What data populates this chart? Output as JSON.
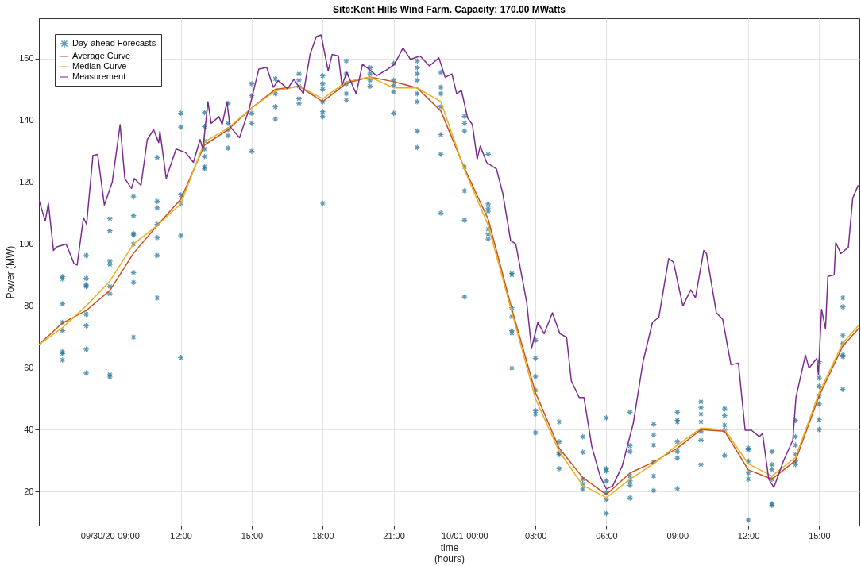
{
  "chart_data": {
    "type": "line",
    "title": "Site:Kent Hills Wind Farm. Capacity: 170.00 MWatts",
    "xlabel": "time\n(hours)",
    "ylabel": "Power (MW)",
    "xlim": [
      "--09-30T06:00",
      "--10-01T16:42"
    ],
    "ylim": [
      9,
      173
    ],
    "xticks": [
      {
        "value": "--09-30T09:00",
        "label": "09/30/20-09:00"
      },
      {
        "value": "--09-30T12:00",
        "label": "12:00"
      },
      {
        "value": "--09-30T15:00",
        "label": "15:00"
      },
      {
        "value": "--09-30T18:00",
        "label": "18:00"
      },
      {
        "value": "--09-30T21:00",
        "label": "21:00"
      },
      {
        "value": "--10-01T00:00",
        "label": "10/01-00:00"
      },
      {
        "value": "--10-01T03:00",
        "label": "03:00"
      },
      {
        "value": "--10-01T06:00",
        "label": "06:00"
      },
      {
        "value": "--10-01T09:00",
        "label": "09:00"
      },
      {
        "value": "--10-01T12:00",
        "label": "12:00"
      },
      {
        "value": "--10-01T15:00",
        "label": "15:00"
      }
    ],
    "yticks": [
      20,
      40,
      60,
      80,
      100,
      120,
      140,
      160
    ],
    "grid": true,
    "legend": "top left",
    "marker": "none",
    "series": [
      {
        "name": "Day-ahead Forecasts",
        "type": "scatter",
        "marker": "cross",
        "color": "#1b6f96",
        "x": [
          "--09-30T07:00",
          "--09-30T07:00",
          "--09-30T07:00",
          "--09-30T07:00",
          "--09-30T07:00",
          "--09-30T07:00",
          "--09-30T07:00",
          "--09-30T07:00",
          "--09-30T08:00",
          "--09-30T08:00",
          "--09-30T08:00",
          "--09-30T08:00",
          "--09-30T08:00",
          "--09-30T08:00",
          "--09-30T08:00",
          "--09-30T08:00",
          "--09-30T09:00",
          "--09-30T09:00",
          "--09-30T09:00",
          "--09-30T09:00",
          "--09-30T09:00",
          "--09-30T09:00",
          "--09-30T09:00",
          "--09-30T09:00",
          "--09-30T10:00",
          "--09-30T10:00",
          "--09-30T10:00",
          "--09-30T10:00",
          "--09-30T10:00",
          "--09-30T10:00",
          "--09-30T10:00",
          "--09-30T10:00",
          "--09-30T11:00",
          "--09-30T11:00",
          "--09-30T11:00",
          "--09-30T11:00",
          "--09-30T11:00",
          "--09-30T11:00",
          "--09-30T11:00",
          "--09-30T12:00",
          "--09-30T12:00",
          "--09-30T12:00",
          "--09-30T12:00",
          "--09-30T12:00",
          "--09-30T12:00",
          "--09-30T13:00",
          "--09-30T13:00",
          "--09-30T13:00",
          "--09-30T13:00",
          "--09-30T13:00",
          "--09-30T13:00",
          "--09-30T13:00",
          "--09-30T14:00",
          "--09-30T14:00",
          "--09-30T14:00",
          "--09-30T14:00",
          "--09-30T14:00",
          "--09-30T15:00",
          "--09-30T15:00",
          "--09-30T15:00",
          "--09-30T15:00",
          "--09-30T15:00",
          "--09-30T16:00",
          "--09-30T16:00",
          "--09-30T16:00",
          "--09-30T16:00",
          "--09-30T17:00",
          "--09-30T17:00",
          "--09-30T17:00",
          "--09-30T17:00",
          "--09-30T17:00",
          "--09-30T18:00",
          "--09-30T18:00",
          "--09-30T18:00",
          "--09-30T18:00",
          "--09-30T18:00",
          "--09-30T18:00",
          "--09-30T18:00",
          "--09-30T19:00",
          "--09-30T19:00",
          "--09-30T19:00",
          "--09-30T19:00",
          "--09-30T19:00",
          "--09-30T20:00",
          "--09-30T20:00",
          "--09-30T20:00",
          "--09-30T20:00",
          "--09-30T21:00",
          "--09-30T21:00",
          "--09-30T21:00",
          "--09-30T21:00",
          "--09-30T21:00",
          "--09-30T22:00",
          "--09-30T22:00",
          "--09-30T22:00",
          "--09-30T22:00",
          "--09-30T22:00",
          "--09-30T22:00",
          "--09-30T22:00",
          "--09-30T22:00",
          "--09-30T23:00",
          "--09-30T23:00",
          "--09-30T23:00",
          "--09-30T23:00",
          "--09-30T23:00",
          "--09-30T23:00",
          "--09-30T23:00",
          "--10-01T00:00",
          "--10-01T00:00",
          "--10-01T00:00",
          "--10-01T00:00",
          "--10-01T00:00",
          "--10-01T00:00",
          "--10-01T00:00",
          "--10-01T01:00",
          "--10-01T01:00",
          "--10-01T01:00",
          "--10-01T01:00",
          "--10-01T01:00",
          "--10-01T01:00",
          "--10-01T01:00",
          "--10-01T02:00",
          "--10-01T02:00",
          "--10-01T02:00",
          "--10-01T02:00",
          "--10-01T02:00",
          "--10-01T02:00",
          "--10-01T02:00",
          "--10-01T03:00",
          "--10-01T03:00",
          "--10-01T03:00",
          "--10-01T03:00",
          "--10-01T03:00",
          "--10-01T03:00",
          "--10-01T03:00",
          "--10-01T04:00",
          "--10-01T04:00",
          "--10-01T04:00",
          "--10-01T04:00",
          "--10-01T04:00",
          "--10-01T05:00",
          "--10-01T05:00",
          "--10-01T05:00",
          "--10-01T05:00",
          "--10-01T05:00",
          "--10-01T06:00",
          "--10-01T06:00",
          "--10-01T06:00",
          "--10-01T06:00",
          "--10-01T06:00",
          "--10-01T06:00",
          "--10-01T06:00",
          "--10-01T07:00",
          "--10-01T07:00",
          "--10-01T07:00",
          "--10-01T07:00",
          "--10-01T07:00",
          "--10-01T07:00",
          "--10-01T07:00",
          "--10-01T08:00",
          "--10-01T08:00",
          "--10-01T08:00",
          "--10-01T08:00",
          "--10-01T08:00",
          "--10-01T08:00",
          "--10-01T09:00",
          "--10-01T09:00",
          "--10-01T09:00",
          "--10-01T09:00",
          "--10-01T09:00",
          "--10-01T09:00",
          "--10-01T09:00",
          "--10-01T10:00",
          "--10-01T10:00",
          "--10-01T10:00",
          "--10-01T10:00",
          "--10-01T10:00",
          "--10-01T10:00",
          "--10-01T10:00",
          "--10-01T11:00",
          "--10-01T11:00",
          "--10-01T11:00",
          "--10-01T11:00",
          "--10-01T11:00",
          "--10-01T12:00",
          "--10-01T12:00",
          "--10-01T12:00",
          "--10-01T12:00",
          "--10-01T12:00",
          "--10-01T12:00",
          "--10-01T13:00",
          "--10-01T13:00",
          "--10-01T13:00",
          "--10-01T13:00",
          "--10-01T13:00",
          "--10-01T13:00",
          "--10-01T14:00",
          "--10-01T14:00",
          "--10-01T14:00",
          "--10-01T14:00",
          "--10-01T14:00",
          "--10-01T14:00",
          "--10-01T15:00",
          "--10-01T15:00",
          "--10-01T15:00",
          "--10-01T15:00",
          "--10-01T15:00",
          "--10-01T15:00",
          "--10-01T15:00",
          "--10-01T16:00",
          "--10-01T16:00",
          "--10-01T16:00",
          "--10-01T16:00",
          "--10-01T16:00",
          "--10-01T16:00",
          "--10-01T16:00"
        ],
        "values": [
          89.5,
          88.7,
          80.7,
          74.7,
          72,
          65.2,
          64.6,
          62.5,
          96.3,
          88.9,
          86.8,
          86.3,
          77.3,
          73.6,
          66,
          58.3,
          108.2,
          104.3,
          94.5,
          93.4,
          86.3,
          83.9,
          57.8,
          57,
          115.3,
          109.2,
          103.4,
          102.9,
          100,
          90.8,
          87.6,
          69.9,
          128,
          113.8,
          111.7,
          106.4,
          102.1,
          96.3,
          82.6,
          142.3,
          137.8,
          115.9,
          113.2,
          102.7,
          63.3,
          142.5,
          138,
          133.3,
          130.7,
          128.3,
          125,
          124.3,
          145.5,
          139,
          137,
          135,
          131,
          151.8,
          148,
          142.3,
          139,
          130,
          153.4,
          148.6,
          144.4,
          140.4,
          155,
          153,
          151,
          147,
          145.5,
          154.4,
          151.8,
          150,
          146,
          142.8,
          141.2,
          113.2,
          159.2,
          155,
          151.8,
          148.6,
          146.5,
          157,
          155,
          153,
          151,
          158.4,
          153,
          151.3,
          149.2,
          142.3,
          159.2,
          157,
          155,
          153,
          148.6,
          146,
          136.5,
          131.2,
          155.5,
          150.7,
          148.6,
          144.4,
          135.4,
          129,
          110,
          141.3,
          139,
          136.5,
          124.9,
          117.2,
          107.7,
          82.9,
          129,
          113,
          111.6,
          110.6,
          104.8,
          103.2,
          101.6,
          90.5,
          90,
          79.4,
          76.5,
          72,
          71.2,
          59.9,
          68.9,
          63,
          57.2,
          52.7,
          46.1,
          45,
          39,
          42.5,
          36.1,
          32.4,
          31.9,
          27.4,
          37.7,
          32.7,
          24,
          22.4,
          20.8,
          43.8,
          27.4,
          26.6,
          23.4,
          19.7,
          17.4,
          12.9,
          45.6,
          34.8,
          32.9,
          25,
          23.4,
          22,
          17.9,
          41.7,
          38.2,
          35,
          29.5,
          25,
          20.3,
          45.6,
          43,
          42.5,
          36.1,
          32.9,
          30.8,
          21,
          49,
          47.2,
          45,
          42.5,
          39.3,
          36.6,
          28.7,
          46.7,
          44.6,
          41.4,
          39.8,
          31.6,
          34,
          33.5,
          29.8,
          26,
          24,
          10.8,
          32.9,
          28.7,
          27.1,
          24,
          16,
          15.5,
          43,
          37.7,
          35,
          31.9,
          29.8,
          28.7,
          62,
          56.7,
          54,
          50.9,
          48.3,
          43.2,
          40,
          82.6,
          79.7,
          70.4,
          67.8,
          64.1,
          63.6,
          53
        ]
      },
      {
        "name": "Average Curve",
        "color": "#c4501f",
        "x": [
          "--09-30T06:00",
          "--09-30T07:00",
          "--09-30T08:00",
          "--09-30T09:00",
          "--09-30T10:00",
          "--09-30T11:00",
          "--09-30T12:00",
          "--09-30T13:00",
          "--09-30T14:00",
          "--09-30T15:00",
          "--09-30T16:00",
          "--09-30T17:00",
          "--09-30T18:00",
          "--09-30T19:00",
          "--09-30T20:00",
          "--09-30T21:00",
          "--09-30T22:00",
          "--09-30T23:00",
          "--10-01T00:00",
          "--10-01T01:00",
          "--10-01T02:00",
          "--10-01T03:00",
          "--10-01T04:00",
          "--10-01T05:00",
          "--10-01T06:00",
          "--10-01T07:00",
          "--10-01T08:00",
          "--10-01T09:00",
          "--10-01T10:00",
          "--10-01T11:00",
          "--10-01T12:00",
          "--10-01T13:00",
          "--10-01T14:00",
          "--10-01T15:00",
          "--10-01T16:00",
          "--10-01T16:42"
        ],
        "values": [
          67.5,
          74.5,
          78.5,
          85,
          97,
          106,
          114.5,
          132,
          137,
          144,
          150,
          151,
          146,
          152,
          154,
          152.5,
          150.5,
          143,
          124.5,
          108,
          79,
          52,
          34,
          24.5,
          19,
          26,
          29.5,
          34,
          40,
          39.5,
          27,
          24,
          30,
          51,
          67,
          73
        ]
      },
      {
        "name": "Median Curve",
        "color": "#e8b020",
        "x": [
          "--09-30T06:00",
          "--09-30T07:00",
          "--09-30T08:00",
          "--09-30T09:00",
          "--09-30T10:00",
          "--09-30T11:00",
          "--09-30T12:00",
          "--09-30T13:00",
          "--09-30T14:00",
          "--09-30T15:00",
          "--09-30T16:00",
          "--09-30T17:00",
          "--09-30T18:00",
          "--09-30T19:00",
          "--09-30T20:00",
          "--09-30T21:00",
          "--09-30T22:00",
          "--09-30T23:00",
          "--10-01T00:00",
          "--10-01T01:00",
          "--10-01T02:00",
          "--10-01T03:00",
          "--10-01T04:00",
          "--10-01T05:00",
          "--10-01T06:00",
          "--10-01T07:00",
          "--10-01T08:00",
          "--10-01T09:00",
          "--10-01T10:00",
          "--10-01T11:00",
          "--10-01T12:00",
          "--10-01T13:00",
          "--10-01T14:00",
          "--10-01T15:00",
          "--10-01T16:00",
          "--10-01T16:42"
        ],
        "values": [
          67.5,
          73,
          80,
          88,
          100,
          106,
          113,
          133,
          137.5,
          144,
          149.5,
          151,
          147,
          152.5,
          154,
          150.5,
          150.5,
          146,
          124,
          106,
          78,
          50,
          33,
          22,
          18,
          24,
          29,
          35,
          40.5,
          40,
          29,
          25,
          31,
          52,
          68,
          74
        ]
      },
      {
        "name": "Measurement",
        "color": "#7b2d8e",
        "x": [
          "--09-30T06:00",
          "--09-30T06:16",
          "--09-30T06:24",
          "--09-30T06:37",
          "--09-30T06:44",
          "--09-30T07:09",
          "--09-30T07:29",
          "--09-30T07:37",
          "--09-30T07:53",
          "--09-30T08:01",
          "--09-30T08:17",
          "--09-30T08:29",
          "--09-30T08:46",
          "--09-30T09:06",
          "--09-30T09:26",
          "--09-30T09:38",
          "--09-30T09:55",
          "--09-30T10:02",
          "--09-30T10:19",
          "--09-30T10:35",
          "--09-30T10:51",
          "--09-30T11:04",
          "--09-30T11:07",
          "--09-30T11:23",
          "--09-30T11:48",
          "--09-30T12:12",
          "--09-30T12:32",
          "--09-30T12:49",
          "--09-30T12:56",
          "--09-30T13:09",
          "--09-30T13:17",
          "--09-30T13:37",
          "--09-30T13:45",
          "--09-30T13:57",
          "--09-30T14:05",
          "--09-30T14:29",
          "--09-30T14:54",
          "--09-30T15:18",
          "--09-30T15:38",
          "--09-30T15:55",
          "--09-30T16:07",
          "--09-30T16:31",
          "--09-30T16:47",
          "--09-30T17:11",
          "--09-30T17:28",
          "--09-30T17:44",
          "--09-30T17:56",
          "--09-30T18:14",
          "--09-30T18:24",
          "--09-30T18:40",
          "--09-30T18:49",
          "--09-30T19:01",
          "--09-30T19:25",
          "--09-30T19:41",
          "--09-30T19:57",
          "--09-30T20:17",
          "--09-30T20:46",
          "--09-30T21:02",
          "--09-30T21:24",
          "--09-30T21:43",
          "--09-30T22:07",
          "--09-30T22:31",
          "--09-30T22:55",
          "--09-30T23:11",
          "--09-30T23:28",
          "--09-30T23:40",
          "--09-30T23:52",
          "--10-01T00:08",
          "--10-01T00:20",
          "--10-01T00:32",
          "--10-01T00:40",
          "--10-01T00:56",
          "--10-01T01:21",
          "--10-01T01:37",
          "--10-01T01:57",
          "--10-01T02:10",
          "--10-01T02:38",
          "--10-01T02:50",
          "--10-01T03:06",
          "--10-01T03:22",
          "--10-01T03:43",
          "--10-01T04:02",
          "--10-01T04:19",
          "--10-01T04:31",
          "--10-01T04:51",
          "--10-01T05:03",
          "--10-01T05:07",
          "--10-01T05:23",
          "--10-01T05:44",
          "--10-01T06:00",
          "--10-01T06:16",
          "--10-01T06:40",
          "--10-01T07:08",
          "--10-01T07:33",
          "--10-01T07:57",
          "--10-01T08:13",
          "--10-01T08:38",
          "--10-01T08:50",
          "--10-01T09:14",
          "--10-01T09:34",
          "--10-01T09:46",
          "--10-01T10:07",
          "--10-01T10:14",
          "--10-01T10:39",
          "--10-01T10:55",
          "--10-01T11:16",
          "--10-01T11:35",
          "--10-01T11:52",
          "--10-01T12:08",
          "--10-01T12:28",
          "--10-01T12:36",
          "--10-01T12:52",
          "--10-01T13:05",
          "--10-01T13:29",
          "--10-01T13:53",
          "--10-01T14:01",
          "--10-01T14:25",
          "--10-01T14:34",
          "--10-01T14:54",
          "--10-01T14:58",
          "--10-01T15:06",
          "--10-01T15:16",
          "--10-01T15:22",
          "--10-01T15:38",
          "--10-01T15:42",
          "--10-01T15:55",
          "--10-01T16:14",
          "--10-01T16:25",
          "--10-01T16:39"
        ],
        "values": [
          114.3,
          107.4,
          113.2,
          97.9,
          99,
          100,
          93.7,
          93.2,
          108.5,
          106.4,
          128.6,
          129,
          112.6,
          120,
          138.6,
          121.2,
          118,
          121.2,
          119,
          133.8,
          137,
          132.8,
          136.5,
          121.2,
          130.7,
          129.6,
          126.4,
          133.8,
          130.7,
          146,
          139,
          141.2,
          138.6,
          146,
          138,
          134.4,
          143.9,
          156.6,
          157.1,
          150.7,
          152.9,
          150.2,
          153.3,
          148.6,
          161.3,
          167.1,
          167.6,
          156,
          161.3,
          160.8,
          151.3,
          155.5,
          148.6,
          158.1,
          156.6,
          154.4,
          156.6,
          158.1,
          163.4,
          159.7,
          160.8,
          157.6,
          160.2,
          153.9,
          155,
          148.6,
          149.7,
          140.7,
          138.6,
          127.5,
          131.7,
          126.4,
          124.3,
          116.4,
          101.1,
          100,
          81,
          66.2,
          74.7,
          71,
          77.8,
          71,
          69.9,
          55.7,
          50.4,
          50.4,
          47.2,
          34.5,
          25,
          20.8,
          21.8,
          28.2,
          41.9,
          62,
          74.7,
          76.3,
          95.3,
          94.2,
          80,
          85.2,
          82.6,
          97.9,
          96.9,
          77.8,
          75.7,
          61,
          61.5,
          39.8,
          39.8,
          37.7,
          38.8,
          24,
          21.3,
          29.8,
          36.6,
          50.4,
          64.1,
          59.9,
          63,
          57.8,
          78.9,
          72.6,
          89.5,
          90,
          100.5,
          96.9,
          99,
          114.8,
          119
        ]
      }
    ]
  }
}
